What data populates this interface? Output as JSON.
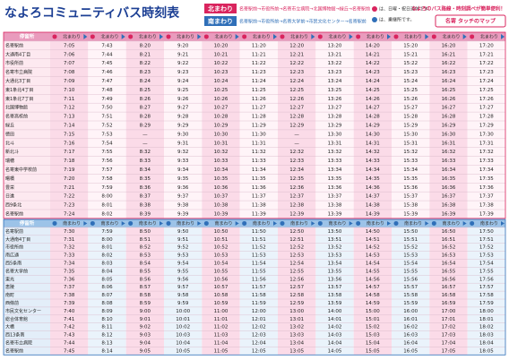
{
  "header": {
    "title": "なよろコミュニティバス時刻表",
    "north_label": "北まわり",
    "north_route": "名寄駅前→市役所前→名寄市立病院→北国博物館→緑丘→名寄駅前",
    "south_label": "南まわり",
    "south_route": "名寄駅前→市役所前→名寄大学前→市民文化センター→名寄駅前",
    "note_holiday": "は、日曜・祝日運休です。",
    "note_transfer": "は、乗継所です。",
    "promo": "なよろのバス路線・時刻調べが簡単便利！",
    "map_button": "名寄 タッチのマップ"
  },
  "table": {
    "sections": [
      {
        "name_header": "停留所",
        "headers": [
          "北まわり",
          "北まわり",
          "北まわり",
          "北まわり",
          "北まわり",
          "北まわり",
          "北まわり",
          "北まわり",
          "北まわり",
          "北まわり",
          "北まわり",
          "北まわり"
        ],
        "rows": [
          {
            "stop": "名寄駅前",
            "times": [
              "7:05",
              "7:43",
              "8:20",
              "9:20",
              "10:20",
              "11:20",
              "12:20",
              "13:20",
              "14:20",
              "15:20",
              "16:20",
              "17:20"
            ]
          },
          {
            "stop": "大通南4丁目",
            "times": [
              "7:06",
              "7:44",
              "8:21",
              "9:21",
              "10:21",
              "11:21",
              "12:21",
              "13:21",
              "14:21",
              "15:21",
              "16:21",
              "17:21"
            ]
          },
          {
            "stop": "市役所前",
            "times": [
              "7:07",
              "7:45",
              "8:22",
              "9:22",
              "10:22",
              "11:22",
              "12:22",
              "13:22",
              "14:22",
              "15:22",
              "16:22",
              "17:22"
            ]
          },
          {
            "stop": "名寄市立病院",
            "times": [
              "7:08",
              "7:46",
              "8:23",
              "9:23",
              "10:23",
              "11:23",
              "12:23",
              "13:23",
              "14:23",
              "15:23",
              "16:23",
              "17:23"
            ]
          },
          {
            "stop": "大通北3丁目",
            "times": [
              "7:09",
              "7:47",
              "8:24",
              "9:24",
              "10:24",
              "11:24",
              "12:24",
              "13:24",
              "14:24",
              "15:24",
              "16:24",
              "17:24"
            ]
          },
          {
            "stop": "東1条北4丁目",
            "times": [
              "7:10",
              "7:48",
              "8:25",
              "9:25",
              "10:25",
              "11:25",
              "12:25",
              "13:25",
              "14:25",
              "15:25",
              "16:25",
              "17:25"
            ]
          },
          {
            "stop": "東1条北7丁目",
            "times": [
              "7:11",
              "7:49",
              "8:26",
              "9:26",
              "10:26",
              "11:26",
              "12:26",
              "13:26",
              "14:26",
              "15:26",
              "16:26",
              "17:26"
            ]
          },
          {
            "stop": "北国博物館",
            "times": [
              "7:12",
              "7:50",
              "8:27",
              "9:27",
              "10:27",
              "11:27",
              "12:27",
              "13:27",
              "14:27",
              "15:27",
              "16:27",
              "17:27"
            ]
          },
          {
            "stop": "名寄高校前",
            "times": [
              "7:13",
              "7:51",
              "8:28",
              "9:28",
              "10:28",
              "11:28",
              "12:28",
              "13:28",
              "14:28",
              "15:28",
              "16:28",
              "17:28"
            ]
          },
          {
            "stop": "緑丘",
            "times": [
              "7:14",
              "7:52",
              "8:29",
              "9:29",
              "10:29",
              "11:29",
              "12:29",
              "13:29",
              "14:29",
              "15:29",
              "16:29",
              "17:29"
            ]
          },
          {
            "stop": "徳田",
            "times": [
              "7:15",
              "7:53",
              "—",
              "9:30",
              "10:30",
              "11:30",
              "—",
              "13:30",
              "14:30",
              "15:30",
              "16:30",
              "17:30"
            ]
          },
          {
            "stop": "北斗",
            "times": [
              "7:16",
              "7:54",
              "—",
              "9:31",
              "10:31",
              "11:31",
              "—",
              "13:31",
              "14:31",
              "15:31",
              "16:31",
              "17:31"
            ]
          },
          {
            "stop": "新北斗",
            "times": [
              "7:17",
              "7:55",
              "8:32",
              "9:32",
              "10:32",
              "11:32",
              "12:32",
              "13:32",
              "14:32",
              "15:32",
              "16:32",
              "17:32"
            ]
          },
          {
            "stop": "瑞穂",
            "times": [
              "7:18",
              "7:56",
              "8:33",
              "9:33",
              "10:33",
              "11:33",
              "12:33",
              "13:33",
              "14:33",
              "15:33",
              "16:33",
              "17:33"
            ]
          },
          {
            "stop": "名寄東中学校前",
            "times": [
              "7:19",
              "7:57",
              "8:34",
              "9:34",
              "10:34",
              "11:34",
              "12:34",
              "13:34",
              "14:34",
              "15:34",
              "16:34",
              "17:34"
            ]
          },
          {
            "stop": "曙橋",
            "times": [
              "7:20",
              "7:58",
              "8:35",
              "9:35",
              "10:35",
              "11:35",
              "12:35",
              "13:35",
              "14:35",
              "15:35",
              "16:35",
              "17:35"
            ]
          },
          {
            "stop": "豊栄",
            "times": [
              "7:21",
              "7:59",
              "8:36",
              "9:36",
              "10:36",
              "11:36",
              "12:36",
              "13:36",
              "14:36",
              "15:36",
              "16:36",
              "17:36"
            ]
          },
          {
            "stop": "日進",
            "times": [
              "7:22",
              "8:00",
              "8:37",
              "9:37",
              "10:37",
              "11:37",
              "12:37",
              "13:37",
              "14:37",
              "15:37",
              "16:37",
              "17:37"
            ]
          },
          {
            "stop": "西9条北",
            "times": [
              "7:23",
              "8:01",
              "8:38",
              "9:38",
              "10:38",
              "11:38",
              "12:38",
              "13:38",
              "14:38",
              "15:38",
              "16:38",
              "17:38"
            ]
          },
          {
            "stop": "名寄駅前",
            "times": [
              "7:24",
              "8:02",
              "8:39",
              "9:39",
              "10:39",
              "11:39",
              "12:39",
              "13:39",
              "14:39",
              "15:39",
              "16:39",
              "17:39"
            ]
          }
        ]
      },
      {
        "name_header": "停留所",
        "headers": [
          "南まわり",
          "南まわり",
          "南まわり",
          "南まわり",
          "南まわり",
          "南まわり",
          "南まわり",
          "南まわり",
          "南まわり",
          "南まわり",
          "南まわり",
          "南まわり"
        ],
        "rows": [
          {
            "stop": "名寄駅前",
            "times": [
              "7:30",
              "7:59",
              "8:50",
              "9:50",
              "10:50",
              "11:50",
              "12:50",
              "13:50",
              "14:50",
              "15:50",
              "16:50",
              "17:50"
            ]
          },
          {
            "stop": "大通南4丁目",
            "times": [
              "7:31",
              "8:00",
              "8:51",
              "9:51",
              "10:51",
              "11:51",
              "12:51",
              "13:51",
              "14:51",
              "15:51",
              "16:51",
              "17:51"
            ]
          },
          {
            "stop": "市役所前",
            "times": [
              "7:32",
              "8:01",
              "8:52",
              "9:52",
              "10:52",
              "11:52",
              "12:52",
              "13:52",
              "14:52",
              "15:52",
              "16:52",
              "17:52"
            ]
          },
          {
            "stop": "南広通",
            "times": [
              "7:33",
              "8:02",
              "8:53",
              "9:53",
              "10:53",
              "11:53",
              "12:53",
              "13:53",
              "14:53",
              "15:53",
              "16:53",
              "17:53"
            ]
          },
          {
            "stop": "西5条南",
            "times": [
              "7:34",
              "8:03",
              "8:54",
              "9:54",
              "10:54",
              "11:54",
              "12:54",
              "13:54",
              "14:54",
              "15:54",
              "16:54",
              "17:54"
            ]
          },
          {
            "stop": "名寄大学前",
            "times": [
              "7:35",
              "8:04",
              "8:55",
              "9:55",
              "10:55",
              "11:55",
              "12:55",
              "13:55",
              "14:55",
              "15:55",
              "16:55",
              "17:55"
            ]
          },
          {
            "stop": "東光",
            "times": [
              "7:36",
              "8:05",
              "8:56",
              "9:56",
              "10:56",
              "11:56",
              "12:56",
              "13:56",
              "14:56",
              "15:56",
              "16:56",
              "17:56"
            ]
          },
          {
            "stop": "恵陵",
            "times": [
              "7:37",
              "8:06",
              "8:57",
              "9:57",
              "10:57",
              "11:57",
              "12:57",
              "13:57",
              "14:57",
              "15:57",
              "16:57",
              "17:57"
            ]
          },
          {
            "stop": "南町",
            "times": [
              "7:38",
              "8:07",
              "8:58",
              "9:58",
              "10:58",
              "11:58",
              "12:58",
              "13:58",
              "14:58",
              "15:58",
              "16:58",
              "17:58"
            ]
          },
          {
            "stop": "西條前",
            "times": [
              "7:39",
              "8:08",
              "8:59",
              "9:59",
              "10:59",
              "11:59",
              "12:59",
              "13:59",
              "14:59",
              "15:59",
              "16:59",
              "17:59"
            ]
          },
          {
            "stop": "市民文化センター",
            "times": [
              "7:40",
              "8:09",
              "9:00",
              "10:00",
              "11:00",
              "12:00",
              "13:00",
              "14:00",
              "15:00",
              "16:00",
              "17:00",
              "18:00"
            ]
          },
          {
            "stop": "総合体育館",
            "times": [
              "7:41",
              "8:10",
              "9:01",
              "10:01",
              "11:01",
              "12:01",
              "13:01",
              "14:01",
              "15:01",
              "16:01",
              "17:01",
              "18:01"
            ]
          },
          {
            "stop": "大橋",
            "times": [
              "7:42",
              "8:11",
              "9:02",
              "10:02",
              "11:02",
              "12:02",
              "13:02",
              "14:02",
              "15:02",
              "16:02",
              "17:02",
              "18:02"
            ]
          },
          {
            "stop": "西13条南",
            "times": [
              "7:43",
              "8:12",
              "9:03",
              "10:03",
              "11:03",
              "12:03",
              "13:03",
              "14:03",
              "15:03",
              "16:03",
              "17:03",
              "18:03"
            ]
          },
          {
            "stop": "名寄市立病院",
            "times": [
              "7:44",
              "8:13",
              "9:04",
              "10:04",
              "11:04",
              "12:04",
              "13:04",
              "14:04",
              "15:04",
              "16:04",
              "17:04",
              "18:04"
            ]
          },
          {
            "stop": "名寄駅前",
            "times": [
              "7:45",
              "8:14",
              "9:05",
              "10:05",
              "11:05",
              "12:05",
              "13:05",
              "14:05",
              "15:05",
              "16:05",
              "17:05",
              "18:05"
            ]
          }
        ]
      }
    ]
  }
}
